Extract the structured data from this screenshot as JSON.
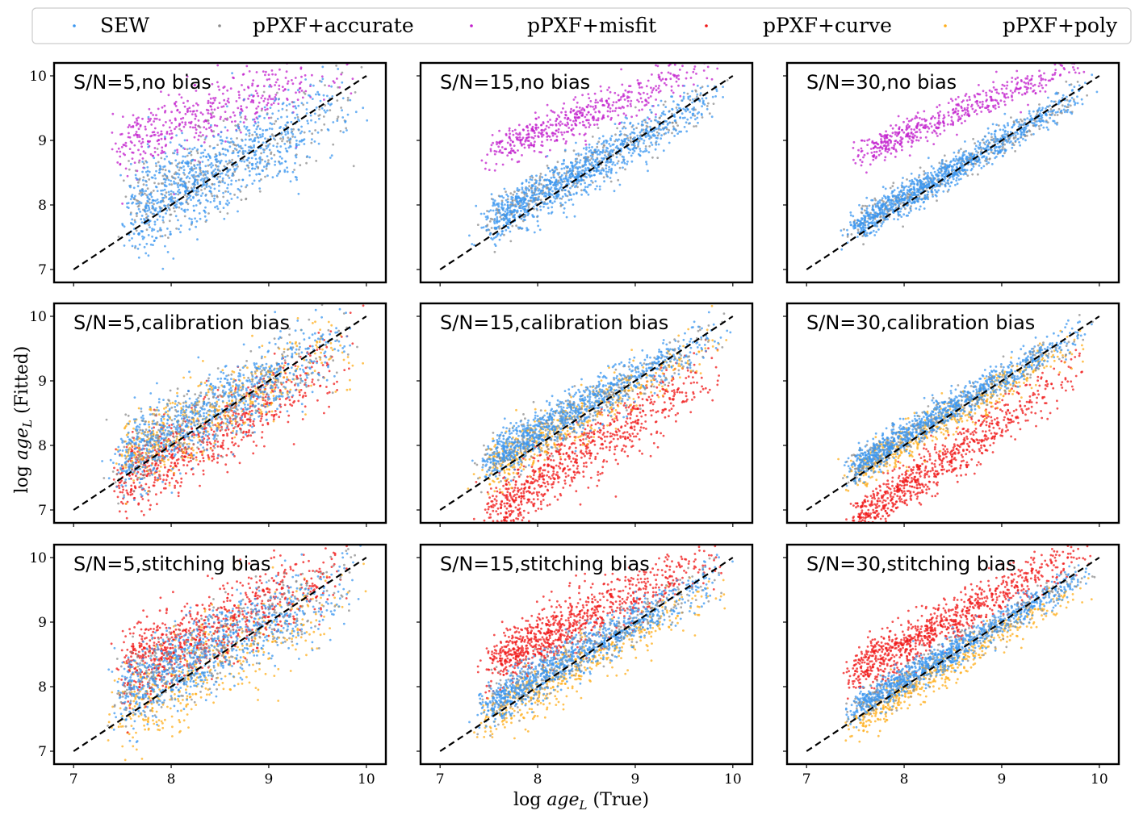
{
  "chart_data": {
    "type": "scatter",
    "layout": "3x3 grid, shared axes",
    "xlabel_prefix": "log",
    "xlabel_var": "age",
    "xlabel_sub": "L",
    "xlabel_suffix": "(True)",
    "ylabel_prefix": "log",
    "ylabel_var": "age",
    "ylabel_sub": "L",
    "ylabel_suffix": "(Fitted)",
    "xlim": [
      6.8,
      10.2
    ],
    "ylim": [
      6.8,
      10.2
    ],
    "xticks": [
      "7",
      "8",
      "9",
      "10"
    ],
    "yticks": [
      "7",
      "8",
      "9",
      "10"
    ],
    "reference_line": {
      "style": "dashed",
      "color": "#000000",
      "from": [
        7,
        7
      ],
      "to": [
        10,
        10
      ]
    },
    "legend": [
      {
        "name": "SEW",
        "color": "#3b97f0"
      },
      {
        "name": "pPXF+accurate",
        "color": "#8c8c8c"
      },
      {
        "name": "pPXF+misfit",
        "color": "#c21fcc"
      },
      {
        "name": "pPXF+curve",
        "color": "#f01818"
      },
      {
        "name": "pPXF+poly",
        "color": "#ffae1a"
      }
    ],
    "panels": [
      {
        "title": "S/N=5,no bias",
        "series": [
          {
            "name": "pPXF+misfit",
            "offset": 0.75,
            "slope": 0.55,
            "sigma": 0.25,
            "n": 450,
            "xmin": 7.5,
            "xmax": 10.0
          },
          {
            "name": "pPXF+accurate",
            "offset": 0.0,
            "slope": 0.75,
            "sigma": 0.35,
            "n": 350,
            "xmin": 7.6,
            "xmax": 9.9
          },
          {
            "name": "SEW",
            "offset": -0.05,
            "slope": 0.75,
            "sigma": 0.35,
            "n": 900,
            "xmin": 7.6,
            "xmax": 9.9
          }
        ]
      },
      {
        "title": "S/N=15,no bias",
        "series": [
          {
            "name": "pPXF+misfit",
            "offset": 0.7,
            "slope": 0.6,
            "sigma": 0.15,
            "n": 500,
            "xmin": 7.6,
            "xmax": 10.0
          },
          {
            "name": "pPXF+accurate",
            "offset": 0.0,
            "slope": 0.85,
            "sigma": 0.18,
            "n": 350,
            "xmin": 7.5,
            "xmax": 9.9
          },
          {
            "name": "SEW",
            "offset": 0.0,
            "slope": 0.85,
            "sigma": 0.18,
            "n": 1000,
            "xmin": 7.5,
            "xmax": 9.9
          }
        ]
      },
      {
        "title": "S/N=30,no bias",
        "series": [
          {
            "name": "pPXF+misfit",
            "offset": 0.7,
            "slope": 0.62,
            "sigma": 0.12,
            "n": 500,
            "xmin": 7.6,
            "xmax": 10.0
          },
          {
            "name": "pPXF+accurate",
            "offset": 0.0,
            "slope": 0.9,
            "sigma": 0.12,
            "n": 350,
            "xmin": 7.5,
            "xmax": 9.9
          },
          {
            "name": "SEW",
            "offset": 0.0,
            "slope": 0.9,
            "sigma": 0.12,
            "n": 1000,
            "xmin": 7.5,
            "xmax": 9.9
          }
        ]
      },
      {
        "title": "S/N=5,calibration bias",
        "series": [
          {
            "name": "pPXF+curve",
            "offset": -0.3,
            "slope": 0.85,
            "sigma": 0.3,
            "n": 700,
            "xmin": 7.5,
            "xmax": 9.9
          },
          {
            "name": "pPXF+poly",
            "offset": 0.0,
            "slope": 0.8,
            "sigma": 0.3,
            "n": 500,
            "xmin": 7.5,
            "xmax": 9.9
          },
          {
            "name": "pPXF+accurate",
            "offset": 0.0,
            "slope": 0.8,
            "sigma": 0.3,
            "n": 350,
            "xmin": 7.5,
            "xmax": 9.9
          },
          {
            "name": "SEW",
            "offset": 0.0,
            "slope": 0.8,
            "sigma": 0.3,
            "n": 800,
            "xmin": 7.5,
            "xmax": 9.9
          }
        ]
      },
      {
        "title": "S/N=15,calibration bias",
        "series": [
          {
            "name": "pPXF+curve",
            "offset": -0.6,
            "slope": 1.0,
            "sigma": 0.25,
            "n": 800,
            "xmin": 7.5,
            "xmax": 9.9
          },
          {
            "name": "pPXF+poly",
            "offset": -0.1,
            "slope": 0.85,
            "sigma": 0.2,
            "n": 500,
            "xmin": 7.5,
            "xmax": 9.9
          },
          {
            "name": "pPXF+accurate",
            "offset": 0.0,
            "slope": 0.85,
            "sigma": 0.18,
            "n": 350,
            "xmin": 7.5,
            "xmax": 9.9
          },
          {
            "name": "SEW",
            "offset": 0.05,
            "slope": 0.85,
            "sigma": 0.17,
            "n": 900,
            "xmin": 7.5,
            "xmax": 9.9
          }
        ]
      },
      {
        "title": "S/N=30,calibration bias",
        "series": [
          {
            "name": "pPXF+curve",
            "offset": -0.6,
            "slope": 1.05,
            "sigma": 0.2,
            "n": 800,
            "xmin": 7.5,
            "xmax": 9.9
          },
          {
            "name": "pPXF+poly",
            "offset": -0.1,
            "slope": 0.9,
            "sigma": 0.15,
            "n": 500,
            "xmin": 7.5,
            "xmax": 9.9
          },
          {
            "name": "pPXF+accurate",
            "offset": 0.0,
            "slope": 0.9,
            "sigma": 0.12,
            "n": 350,
            "xmin": 7.5,
            "xmax": 9.9
          },
          {
            "name": "SEW",
            "offset": 0.05,
            "slope": 0.9,
            "sigma": 0.12,
            "n": 900,
            "xmin": 7.5,
            "xmax": 9.9
          }
        ]
      },
      {
        "title": "S/N=5,stitching bias",
        "series": [
          {
            "name": "pPXF+poly",
            "offset": -0.2,
            "slope": 0.75,
            "sigma": 0.35,
            "n": 500,
            "xmin": 7.5,
            "xmax": 9.9
          },
          {
            "name": "pPXF+curve",
            "offset": 0.3,
            "slope": 0.7,
            "sigma": 0.3,
            "n": 800,
            "xmin": 7.5,
            "xmax": 9.9
          },
          {
            "name": "pPXF+accurate",
            "offset": 0.0,
            "slope": 0.75,
            "sigma": 0.32,
            "n": 350,
            "xmin": 7.5,
            "xmax": 9.9
          },
          {
            "name": "SEW",
            "offset": 0.0,
            "slope": 0.75,
            "sigma": 0.32,
            "n": 800,
            "xmin": 7.5,
            "xmax": 9.9
          }
        ]
      },
      {
        "title": "S/N=15,stitching bias",
        "series": [
          {
            "name": "pPXF+poly",
            "offset": -0.2,
            "slope": 0.85,
            "sigma": 0.2,
            "n": 500,
            "xmin": 7.5,
            "xmax": 9.9
          },
          {
            "name": "pPXF+curve",
            "offset": 0.45,
            "slope": 0.75,
            "sigma": 0.22,
            "n": 900,
            "xmin": 7.5,
            "xmax": 9.9
          },
          {
            "name": "pPXF+accurate",
            "offset": 0.0,
            "slope": 0.85,
            "sigma": 0.17,
            "n": 350,
            "xmin": 7.5,
            "xmax": 9.9
          },
          {
            "name": "SEW",
            "offset": 0.0,
            "slope": 0.85,
            "sigma": 0.17,
            "n": 900,
            "xmin": 7.5,
            "xmax": 9.9
          }
        ]
      },
      {
        "title": "S/N=30,stitching bias",
        "series": [
          {
            "name": "pPXF+poly",
            "offset": -0.2,
            "slope": 0.9,
            "sigma": 0.14,
            "n": 500,
            "xmin": 7.5,
            "xmax": 9.9
          },
          {
            "name": "pPXF+curve",
            "offset": 0.45,
            "slope": 0.8,
            "sigma": 0.18,
            "n": 900,
            "xmin": 7.5,
            "xmax": 9.9
          },
          {
            "name": "pPXF+accurate",
            "offset": 0.0,
            "slope": 0.9,
            "sigma": 0.12,
            "n": 350,
            "xmin": 7.5,
            "xmax": 9.9
          },
          {
            "name": "SEW",
            "offset": 0.0,
            "slope": 0.9,
            "sigma": 0.12,
            "n": 900,
            "xmin": 7.5,
            "xmax": 9.9
          }
        ]
      }
    ]
  }
}
